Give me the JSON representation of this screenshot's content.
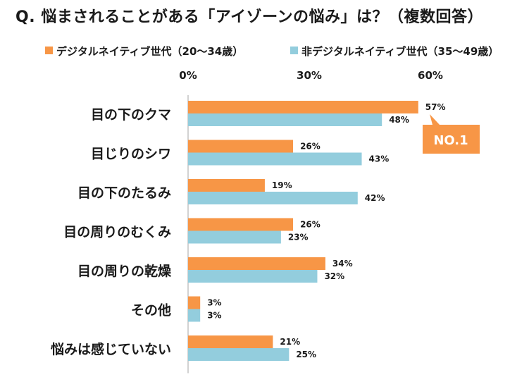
{
  "colors": {
    "series1": "#f79646",
    "series2": "#93cddd",
    "axis": "#a6a6a6",
    "callout": "#f79646"
  },
  "chart_data": {
    "type": "bar",
    "orientation": "horizontal",
    "title": "Q. 悩まされることがある「アイゾーンの悩み」は？（複数回答）",
    "categories": [
      "目の下のクマ",
      "目じりのシワ",
      "目の下のたるみ",
      "目の周りのむくみ",
      "目の周りの乾燥",
      "その他",
      "悩みは感じていない"
    ],
    "series": [
      {
        "name": "デジタルネイティブ世代（20～34歳）",
        "values": [
          57,
          26,
          19,
          26,
          34,
          3,
          21
        ]
      },
      {
        "name": "非デジタルネイティブ世代（35～49歳）",
        "values": [
          48,
          43,
          42,
          23,
          32,
          3,
          25
        ]
      }
    ],
    "tick_labels": [
      "0%",
      "30%",
      "60%"
    ],
    "xlim": [
      0,
      60
    ],
    "value_suffix": "%",
    "legend_position": "top",
    "annotation": "NO.1"
  }
}
